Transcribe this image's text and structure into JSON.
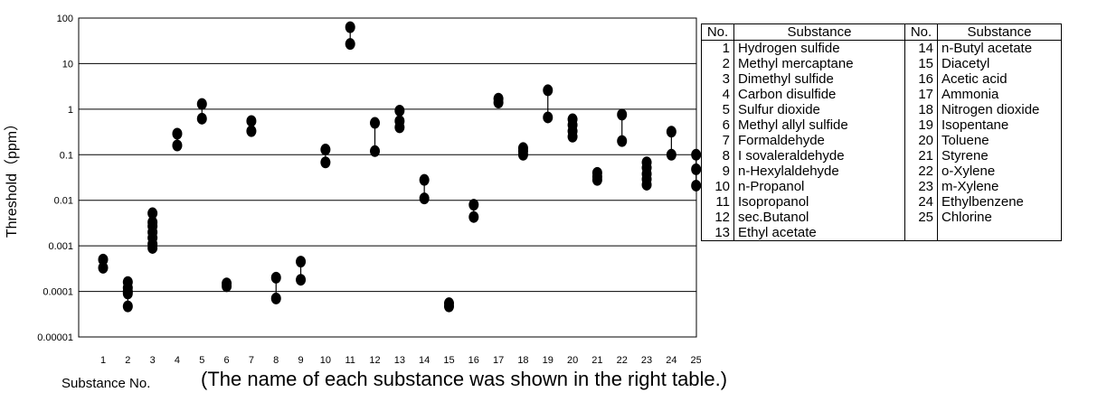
{
  "chart_data": {
    "type": "scatter",
    "ylabel": "Threshold（ppm）",
    "xlabel": "Substance No.",
    "note": "(The name of each substance was shown in the right table.)",
    "yscale": "log",
    "ylim": [
      1e-05,
      100
    ],
    "y_ticks": [
      "100",
      "10",
      "1",
      "0.1",
      "0.01",
      "0.001",
      "0.0001",
      "0.00001"
    ],
    "x_ticks": [
      "1",
      "2",
      "3",
      "4",
      "5",
      "6",
      "7",
      "8",
      "9",
      "10",
      "11",
      "12",
      "13",
      "14",
      "15",
      "16",
      "17",
      "18",
      "19",
      "20",
      "21",
      "22",
      "23",
      "24",
      "25"
    ],
    "grid": "horizontal",
    "points": [
      {
        "x": 1,
        "values": [
          0.0005,
          0.00033
        ]
      },
      {
        "x": 2,
        "values": [
          0.00016,
          0.00012,
          0.0001,
          9e-05,
          4.7e-05
        ]
      },
      {
        "x": 3,
        "values": [
          0.0052,
          0.0033,
          0.0027,
          0.002,
          0.0015,
          0.0011,
          0.0009
        ]
      },
      {
        "x": 4,
        "values": [
          0.29,
          0.16
        ]
      },
      {
        "x": 5,
        "values": [
          1.3,
          0.62
        ]
      },
      {
        "x": 6,
        "values": [
          0.00015,
          0.00013
        ]
      },
      {
        "x": 7,
        "values": [
          0.55,
          0.33
        ]
      },
      {
        "x": 8,
        "values": [
          0.0002,
          7e-05
        ]
      },
      {
        "x": 9,
        "values": [
          0.00045,
          0.00018
        ]
      },
      {
        "x": 10,
        "values": [
          0.13,
          0.068
        ]
      },
      {
        "x": 11,
        "values": [
          63,
          27
        ]
      },
      {
        "x": 12,
        "values": [
          0.5,
          0.12
        ]
      },
      {
        "x": 13,
        "values": [
          0.93,
          0.55,
          0.4
        ]
      },
      {
        "x": 14,
        "values": [
          0.028,
          0.011
        ]
      },
      {
        "x": 15,
        "values": [
          5.5e-05,
          4.7e-05
        ]
      },
      {
        "x": 16,
        "values": [
          0.008,
          0.0043
        ]
      },
      {
        "x": 17,
        "values": [
          1.7,
          1.4
        ]
      },
      {
        "x": 18,
        "values": [
          0.14,
          0.12,
          0.1
        ]
      },
      {
        "x": 19,
        "values": [
          2.6,
          0.66
        ]
      },
      {
        "x": 20,
        "values": [
          0.6,
          0.45,
          0.33,
          0.25
        ]
      },
      {
        "x": 21,
        "values": [
          0.04,
          0.033,
          0.028
        ]
      },
      {
        "x": 22,
        "values": [
          0.76,
          0.2
        ]
      },
      {
        "x": 23,
        "values": [
          0.068,
          0.052,
          0.038,
          0.029,
          0.022
        ]
      },
      {
        "x": 24,
        "values": [
          0.32,
          0.1
        ]
      },
      {
        "x": 25,
        "values": [
          0.1,
          0.048,
          0.021
        ]
      }
    ]
  },
  "table": {
    "headers": [
      "No.",
      "Substance",
      "No.",
      "Substance"
    ],
    "rows": [
      [
        "1",
        "Hydrogen sulfide",
        "14",
        "n-Butyl acetate"
      ],
      [
        "2",
        "Methyl mercaptane",
        "15",
        "Diacetyl"
      ],
      [
        "3",
        "Dimethyl sulfide",
        "16",
        "Acetic acid"
      ],
      [
        "4",
        "Carbon disulfide",
        "17",
        "Ammonia"
      ],
      [
        "5",
        "Sulfur dioxide",
        "18",
        "Nitrogen dioxide"
      ],
      [
        "6",
        "Methyl allyl sulfide",
        "19",
        "Isopentane"
      ],
      [
        "7",
        "Formaldehyde",
        "20",
        "Toluene"
      ],
      [
        "8",
        "I sovaleraldehyde",
        "21",
        "Styrene"
      ],
      [
        "9",
        "n-Hexylaldehyde",
        "22",
        "o-Xylene"
      ],
      [
        "10",
        "n-Propanol",
        "23",
        "m-Xylene"
      ],
      [
        "11",
        "Isopropanol",
        "24",
        "Ethylbenzene"
      ],
      [
        "12",
        "sec.Butanol",
        "25",
        "Chlorine"
      ],
      [
        "13",
        "Ethyl acetate",
        "",
        ""
      ]
    ]
  }
}
